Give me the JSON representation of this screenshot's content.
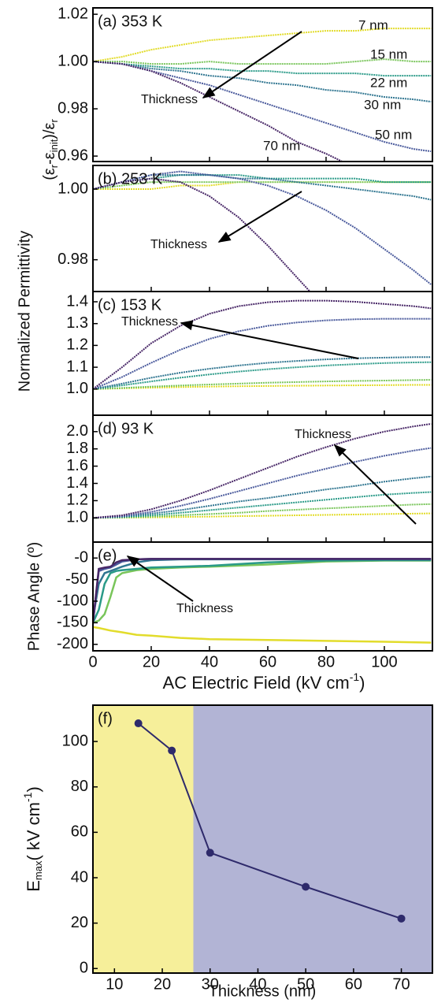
{
  "chart_data": [
    {
      "type": "line",
      "label": "(a) 353 K",
      "ylabel": "Normalized Permittivity",
      "ylabel_formula": [
        "(ε",
        "r",
        "-ε",
        "init",
        ")/ε",
        "r"
      ],
      "annotation": "Thickness",
      "xlim": [
        0,
        116.5
      ],
      "ylim": [
        0.9577,
        1.0227
      ],
      "yticks": [
        0.96,
        0.98,
        {
          "value": 1,
          "label": "1.00"
        },
        1.02
      ],
      "x": [
        0,
        10,
        20,
        30,
        40,
        50,
        60,
        70,
        80,
        90,
        100,
        110,
        116
      ],
      "series": [
        {
          "name": "7 nm",
          "color": "#e2dc2b",
          "values": [
            1.0,
            1.002,
            1.005,
            1.007,
            1.009,
            1.01,
            1.011,
            1.012,
            1.013,
            1.013,
            1.014,
            1.014,
            1.014
          ]
        },
        {
          "name": "15 nm",
          "color": "#79c55a",
          "values": [
            1.0,
            1.0,
            0.999,
            0.999,
            1.0,
            0.999,
            0.999,
            0.999,
            0.999,
            1.0,
            1.001,
            1.0,
            1.0
          ]
        },
        {
          "name": "22 nm",
          "color": "#2a9a88",
          "values": [
            1.0,
            0.999,
            0.998,
            0.997,
            0.997,
            0.996,
            0.996,
            0.995,
            0.995,
            0.995,
            0.994,
            0.994,
            0.994
          ]
        },
        {
          "name": "30 nm",
          "color": "#2f7590",
          "values": [
            1.0,
            0.999,
            0.997,
            0.996,
            0.994,
            0.993,
            0.991,
            0.99,
            0.988,
            0.987,
            0.985,
            0.984,
            0.983
          ]
        },
        {
          "name": "50 nm",
          "color": "#4a5a9c",
          "values": [
            1.0,
            0.999,
            0.996,
            0.993,
            0.99,
            0.986,
            0.982,
            0.978,
            0.974,
            0.97,
            0.966,
            0.963,
            0.962
          ]
        },
        {
          "name": "70 nm",
          "color": "#482767",
          "values": [
            1.0,
            0.999,
            0.996,
            0.991,
            0.985,
            0.979,
            0.973,
            0.966,
            0.961,
            0.955,
            null,
            null,
            null
          ]
        }
      ]
    },
    {
      "type": "line",
      "label": "(b) 253 K",
      "annotation": "Thickness",
      "xlim": [
        0,
        116.5
      ],
      "ylim": [
        0.971,
        1.0067
      ],
      "yticks": [
        0.98,
        {
          "value": 1,
          "label": "1.00"
        }
      ],
      "x": [
        0,
        10,
        20,
        30,
        40,
        50,
        60,
        70,
        80,
        90,
        100,
        110,
        116
      ],
      "series": [
        {
          "color": "#e2dc2b",
          "values": [
            1.0,
            1.0,
            1.0,
            1.001,
            1.001,
            1.002,
            1.002,
            1.002,
            1.002,
            1.002,
            1.002,
            1.002,
            1.002
          ]
        },
        {
          "color": "#79c55a",
          "values": [
            1.0,
            1.001,
            1.002,
            1.002,
            1.002,
            1.002,
            1.002,
            1.002,
            1.002,
            1.002,
            1.002,
            1.002,
            1.002
          ]
        },
        {
          "color": "#2a9a88",
          "values": [
            1.0,
            1.002,
            1.003,
            1.004,
            1.004,
            1.004,
            1.003,
            1.003,
            1.003,
            1.003,
            1.002,
            1.002,
            1.002
          ]
        },
        {
          "color": "#2f7590",
          "values": [
            1.0,
            1.002,
            1.004,
            1.004,
            1.004,
            1.003,
            1.003,
            1.002,
            1.001,
            1.0,
            0.999,
            0.998,
            0.997
          ]
        },
        {
          "color": "#4a5a9c",
          "values": [
            1.0,
            1.002,
            1.004,
            1.005,
            1.004,
            1.003,
            1.001,
            0.998,
            0.994,
            0.989,
            0.983,
            0.977,
            0.973
          ]
        },
        {
          "color": "#482767",
          "values": [
            1.0,
            1.002,
            1.003,
            1.002,
            0.998,
            0.992,
            0.984,
            0.975,
            0.966,
            null,
            null,
            null,
            null
          ]
        }
      ]
    },
    {
      "type": "line",
      "label": "(c) 153 K",
      "annotation": "Thickness",
      "xlim": [
        0,
        116.5
      ],
      "ylim": [
        0.88,
        1.447
      ],
      "yticks": [
        {
          "value": 1,
          "label": "1.0"
        },
        1.1,
        1.2,
        1.3,
        1.4
      ],
      "x": [
        0,
        10,
        20,
        30,
        40,
        50,
        60,
        70,
        80,
        90,
        100,
        110,
        116
      ],
      "series": [
        {
          "color": "#e2dc2b",
          "values": [
            1.0,
            1.003,
            1.006,
            1.009,
            1.011,
            1.013,
            1.014,
            1.015,
            1.016,
            1.017,
            1.018,
            1.019,
            1.019
          ]
        },
        {
          "color": "#79c55a",
          "values": [
            1.0,
            1.005,
            1.011,
            1.016,
            1.021,
            1.025,
            1.029,
            1.032,
            1.035,
            1.037,
            1.039,
            1.041,
            1.042
          ]
        },
        {
          "color": "#2a9a88",
          "values": [
            1.0,
            1.017,
            1.035,
            1.052,
            1.067,
            1.08,
            1.091,
            1.1,
            1.108,
            1.114,
            1.119,
            1.122,
            1.123
          ]
        },
        {
          "color": "#2f7590",
          "values": [
            1.0,
            1.025,
            1.052,
            1.075,
            1.093,
            1.108,
            1.12,
            1.129,
            1.136,
            1.141,
            1.144,
            1.146,
            1.146
          ]
        },
        {
          "color": "#4a5a9c",
          "values": [
            1.0,
            1.055,
            1.12,
            1.18,
            1.23,
            1.265,
            1.29,
            1.305,
            1.315,
            1.32,
            1.322,
            1.322,
            1.322
          ]
        },
        {
          "color": "#482767",
          "values": [
            1.0,
            1.1,
            1.21,
            1.29,
            1.345,
            1.38,
            1.398,
            1.405,
            1.405,
            1.4,
            1.39,
            1.38,
            1.37
          ]
        }
      ]
    },
    {
      "type": "line",
      "label": "(d) 93 K",
      "annotation": "Thickness",
      "xlim": [
        0,
        116.5
      ],
      "ylim": [
        0.72,
        2.19
      ],
      "yticks": [
        {
          "value": 1,
          "label": "1.0"
        },
        1.2,
        1.4,
        1.6,
        1.8,
        {
          "value": 2,
          "label": "2.0"
        }
      ],
      "x": [
        0,
        10,
        20,
        30,
        40,
        50,
        60,
        70,
        80,
        90,
        100,
        110,
        116
      ],
      "series": [
        {
          "color": "#e2dc2b",
          "values": [
            1.0,
            1.002,
            1.006,
            1.01,
            1.015,
            1.02,
            1.025,
            1.03,
            1.035,
            1.04,
            1.045,
            1.05,
            1.052
          ]
        },
        {
          "color": "#79c55a",
          "values": [
            1.0,
            1.005,
            1.015,
            1.03,
            1.045,
            1.06,
            1.08,
            1.095,
            1.11,
            1.125,
            1.14,
            1.155,
            1.16
          ]
        },
        {
          "color": "#2a9a88",
          "values": [
            1.0,
            1.01,
            1.03,
            1.06,
            1.09,
            1.12,
            1.15,
            1.18,
            1.21,
            1.24,
            1.27,
            1.29,
            1.3
          ]
        },
        {
          "color": "#2f7590",
          "values": [
            1.0,
            1.015,
            1.05,
            1.09,
            1.14,
            1.19,
            1.23,
            1.28,
            1.33,
            1.37,
            1.42,
            1.46,
            1.48
          ]
        },
        {
          "color": "#4a5a9c",
          "values": [
            1.0,
            1.02,
            1.07,
            1.14,
            1.22,
            1.31,
            1.4,
            1.49,
            1.57,
            1.65,
            1.72,
            1.78,
            1.81
          ]
        },
        {
          "color": "#482767",
          "values": [
            1.0,
            1.03,
            1.1,
            1.2,
            1.32,
            1.45,
            1.58,
            1.71,
            1.82,
            1.92,
            2.0,
            2.06,
            2.09
          ]
        }
      ]
    },
    {
      "type": "line",
      "label": "(e)",
      "annotation": "Thickness",
      "ylabel": "Phase Angle (º)",
      "xlabel": [
        "AC Electric Field (kV cm",
        "-1",
        ")"
      ],
      "xlim": [
        0,
        116.5
      ],
      "ylim": [
        -215,
        37
      ],
      "yticks": [
        {
          "value": 0,
          "label": "-0"
        },
        -50,
        -100,
        -150,
        -200
      ],
      "xticks": [
        0,
        20,
        40,
        60,
        80,
        100
      ],
      "x": [
        0,
        2,
        4,
        6,
        8,
        10,
        15,
        20,
        30,
        40,
        60,
        80,
        100,
        116
      ],
      "series": [
        {
          "color": "#e2dc2b",
          "values": [
            -160,
            -162,
            -165,
            -168,
            -170,
            -172,
            -178,
            -180,
            -185,
            -188,
            -190,
            -192,
            -194,
            -196
          ]
        },
        {
          "color": "#79c55a",
          "values": [
            -150,
            -145,
            -130,
            -90,
            -45,
            -35,
            -28,
            -25,
            -22,
            -20,
            -15,
            -8,
            -6,
            -6
          ]
        },
        {
          "color": "#2a9a88",
          "values": [
            -150,
            -120,
            -60,
            -35,
            -30,
            -28,
            -25,
            -22,
            -20,
            -18,
            -10,
            -6,
            -5,
            -5
          ]
        },
        {
          "color": "#2f7590",
          "values": [
            -140,
            -60,
            -35,
            -30,
            -25,
            -20,
            -10,
            -5,
            -3,
            -3,
            -3,
            -3,
            -3,
            -3
          ]
        },
        {
          "color": "#4a5a9c",
          "values": [
            -150,
            -30,
            -25,
            -22,
            -15,
            -8,
            -3,
            -2,
            -2,
            -2,
            -2,
            -2,
            -2,
            -2
          ]
        },
        {
          "color": "#482767",
          "values": [
            -150,
            -25,
            -22,
            -20,
            -10,
            -5,
            -3,
            -2,
            -2,
            -2,
            -2,
            -2,
            -2,
            -2
          ]
        }
      ]
    },
    {
      "type": "scatter-line",
      "label": "(f)",
      "ylabel": [
        "E",
        "max",
        "( kV cm",
        "-1",
        ")"
      ],
      "xlabel": "Thickness (nm)",
      "xlim": [
        5.5,
        76.5
      ],
      "ylim": [
        -2,
        116
      ],
      "xticks": [
        10,
        20,
        30,
        40,
        50,
        60,
        70
      ],
      "yticks": [
        0,
        20,
        40,
        60,
        80,
        100
      ],
      "shading": [
        {
          "from": 5.5,
          "to": 26.5,
          "color": "#f6ef9a"
        },
        {
          "from": 26.5,
          "to": 76.5,
          "color": "#b2b4d5"
        }
      ],
      "x": [
        15,
        22,
        30,
        50,
        70
      ],
      "series": [
        {
          "color": "#2e2a6b",
          "values": [
            108,
            96,
            51,
            36,
            22
          ]
        }
      ]
    }
  ]
}
